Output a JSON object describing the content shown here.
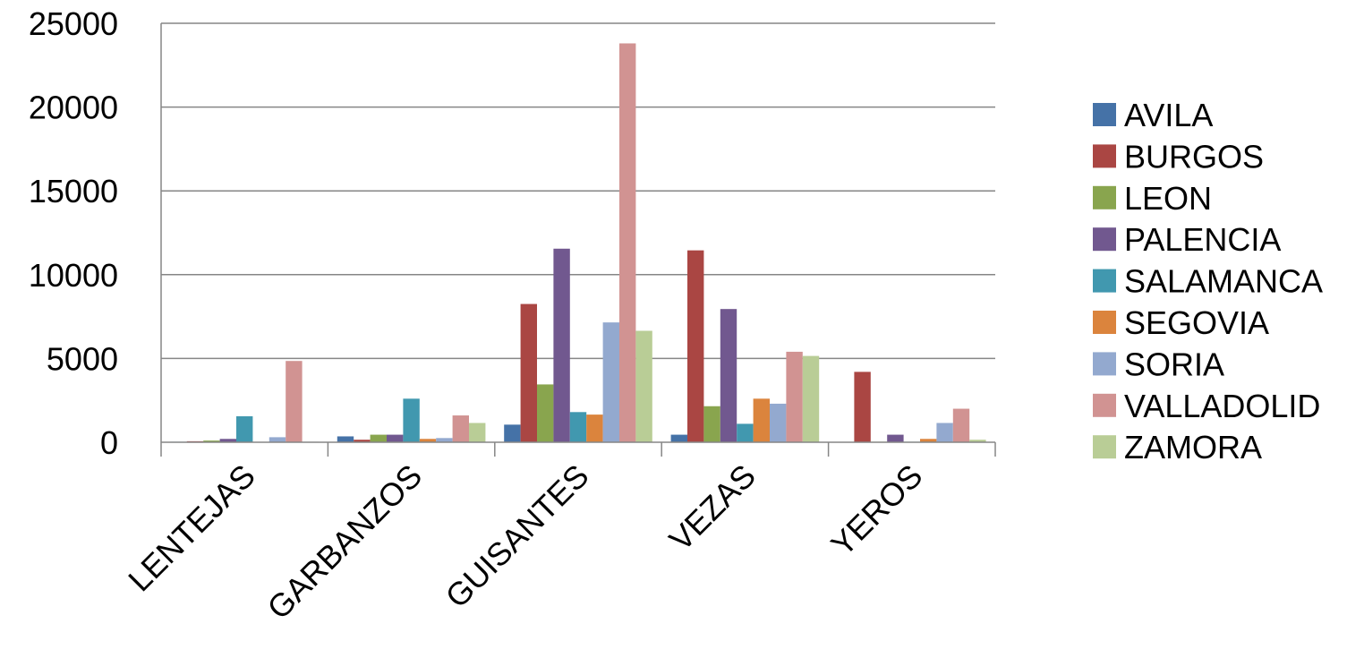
{
  "chart_data": {
    "type": "bar",
    "title": "",
    "xlabel": "",
    "ylabel": "",
    "ylim": [
      0,
      25000
    ],
    "yticks": [
      0,
      5000,
      10000,
      15000,
      20000,
      25000
    ],
    "grid": true,
    "legend_position": "right",
    "categories": [
      "LENTEJAS",
      "GARBANZOS",
      "GUISANTES",
      "VEZAS",
      "YEROS"
    ],
    "series": [
      {
        "name": "AVILA",
        "color": "#4572A7",
        "values": [
          30,
          350,
          1050,
          450,
          20
        ]
      },
      {
        "name": "BURGOS",
        "color": "#AA4643",
        "values": [
          60,
          150,
          8250,
          11450,
          4200
        ]
      },
      {
        "name": "LEON",
        "color": "#89A54E",
        "values": [
          100,
          450,
          3450,
          2150,
          30
        ]
      },
      {
        "name": "PALENCIA",
        "color": "#71588F",
        "values": [
          200,
          450,
          11550,
          7950,
          450
        ]
      },
      {
        "name": "SALAMANCA",
        "color": "#4198AF",
        "values": [
          1550,
          2600,
          1800,
          1100,
          30
        ]
      },
      {
        "name": "SEGOVIA",
        "color": "#DB843D",
        "values": [
          20,
          200,
          1650,
          2600,
          200
        ]
      },
      {
        "name": "SORIA",
        "color": "#93A9CF",
        "values": [
          300,
          250,
          7150,
          2300,
          1150
        ]
      },
      {
        "name": "VALLADOLID",
        "color": "#D19392",
        "values": [
          4850,
          1600,
          23800,
          5400,
          2000
        ]
      },
      {
        "name": "ZAMORA",
        "color": "#B9CD96",
        "values": [
          30,
          1150,
          6650,
          5150,
          150
        ]
      }
    ]
  }
}
